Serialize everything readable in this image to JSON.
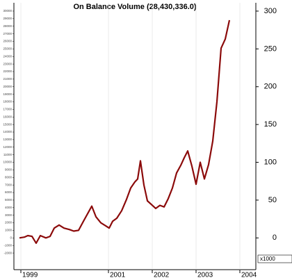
{
  "chart_data": {
    "type": "line",
    "title": "On Balance Volume (28,430,336.0)",
    "y2_unit_label": "x1000",
    "x": [
      1998.968,
      1999.079,
      1999.159,
      1999.254,
      1999.349,
      1999.444,
      1999.571,
      1999.667,
      1999.762,
      1999.873,
      1999.984,
      2000.111,
      2000.206,
      2000.317,
      2000.429,
      2000.524,
      2000.619,
      2000.714,
      2000.825,
      2000.937,
      2001.016,
      2001.095,
      2001.19,
      2001.302,
      2001.413,
      2001.508,
      2001.603,
      2001.667,
      2001.73,
      2001.81,
      2001.889,
      2001.984,
      2002.079,
      2002.175,
      2002.27,
      2002.365,
      2002.46,
      2002.556,
      2002.651,
      2002.73,
      2002.81,
      2002.905,
      2003.0,
      2003.095,
      2003.19,
      2003.286,
      2003.381,
      2003.476,
      2003.571,
      2003.667,
      2003.762
    ],
    "series": [
      {
        "color": "#8b0a0a",
        "axis": "y2",
        "values": [
          0,
          1,
          3,
          2,
          -7,
          3,
          0,
          2,
          13,
          17,
          13,
          11,
          9,
          10,
          22,
          32,
          42,
          28,
          20,
          16,
          13,
          22,
          26,
          36,
          51,
          66,
          74,
          78,
          102,
          70,
          49,
          44,
          39,
          43,
          41,
          52,
          66,
          86,
          96,
          106,
          115,
          95,
          71,
          100,
          78,
          97,
          128,
          180,
          251,
          263,
          288
        ]
      }
    ],
    "xlim": [
      1998.841,
      2004.365
    ],
    "xticks": [
      1999,
      2001,
      2002,
      2003,
      2004
    ],
    "ylim": [
      -4200,
      31100
    ],
    "yticks": [
      30000,
      29000,
      28000,
      27000,
      26000,
      25000,
      24000,
      23000,
      22000,
      21000,
      20000,
      19000,
      18000,
      17000,
      16000,
      15000,
      14000,
      13000,
      12000,
      11000,
      10000,
      9000,
      8000,
      7000,
      6000,
      5000,
      4000,
      3000,
      2000,
      1000,
      0,
      -1000,
      -2000
    ],
    "y2lim": [
      -42,
      311
    ],
    "y2ticks": [
      0,
      50,
      100,
      150,
      200,
      250,
      300
    ],
    "grid": true
  }
}
